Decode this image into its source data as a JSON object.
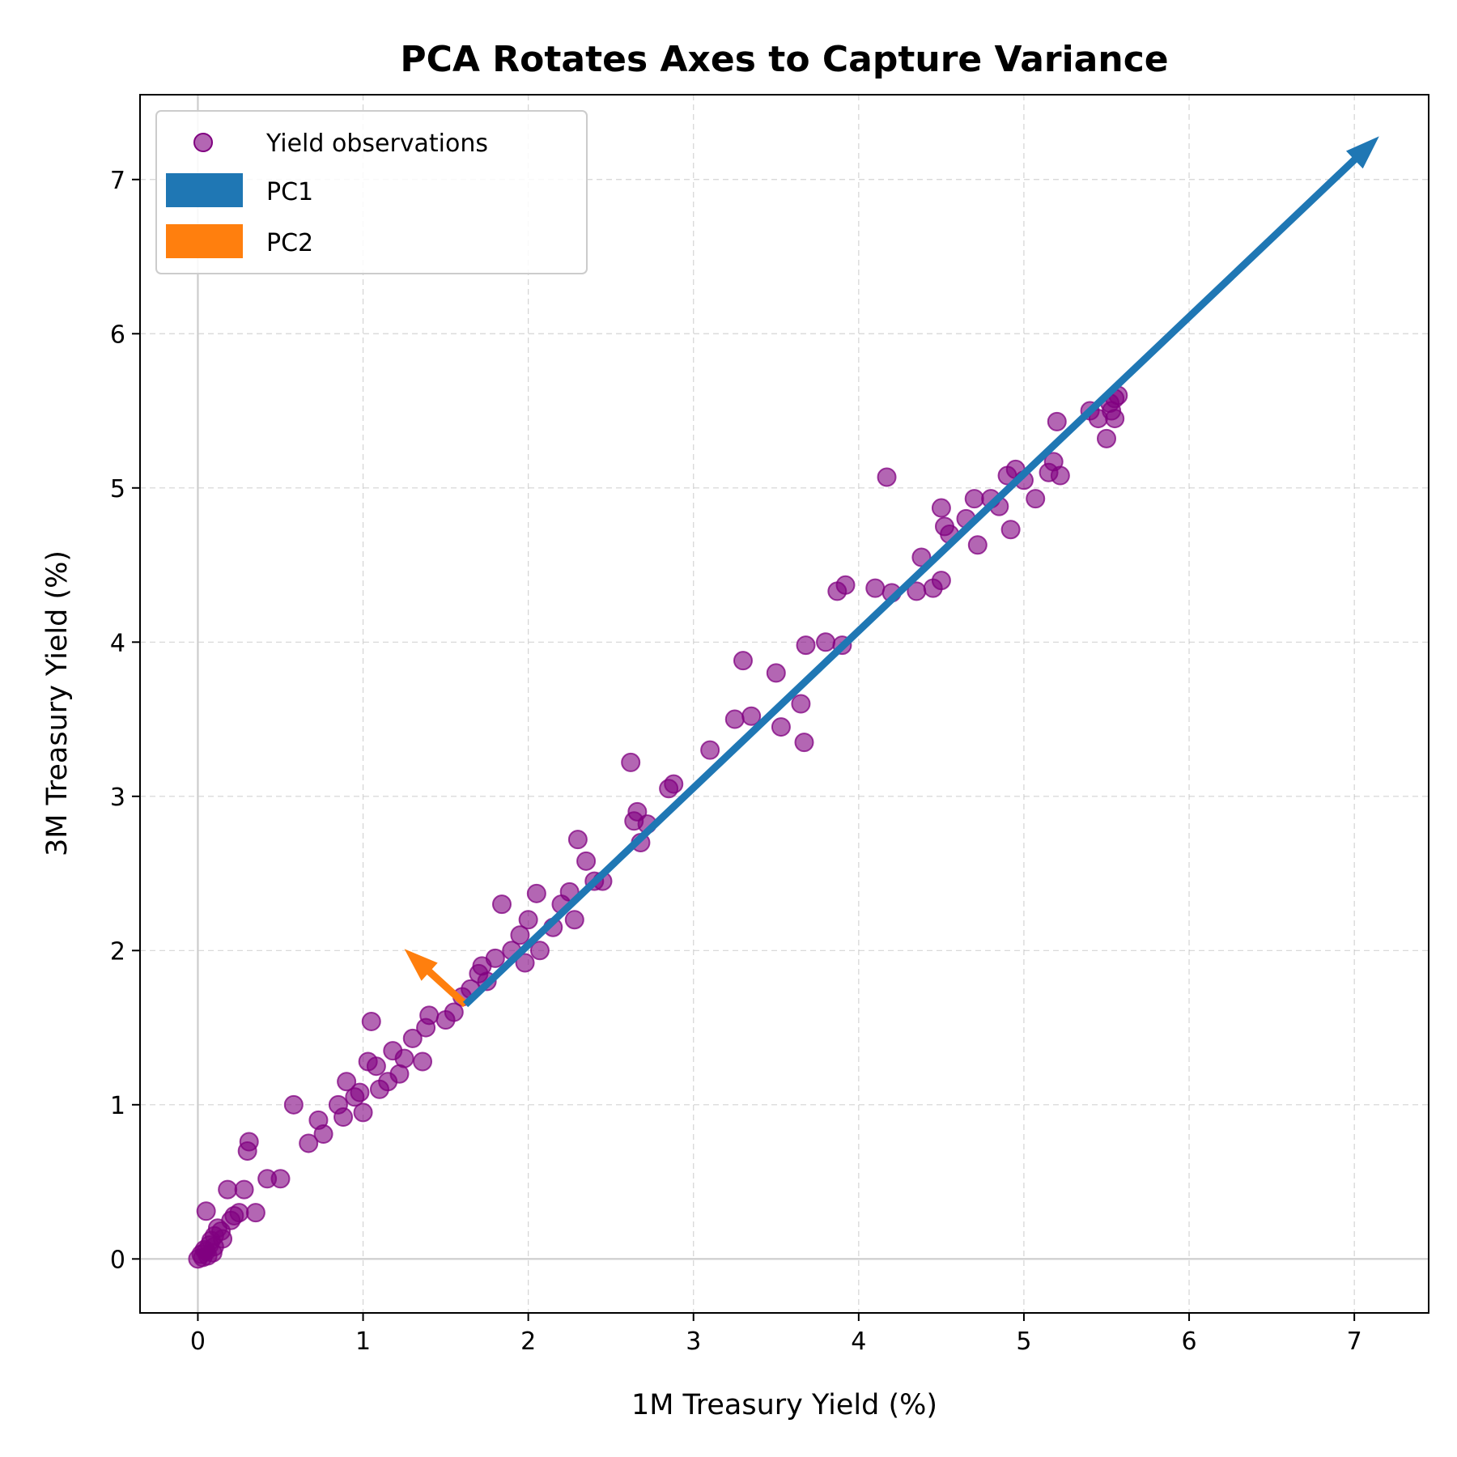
{
  "chart_data": {
    "type": "scatter",
    "title": "PCA Rotates Axes to Capture Variance",
    "xlabel": "1M Treasury Yield (%)",
    "ylabel": "3M Treasury Yield (%)",
    "xlim": [
      -0.35,
      7.45
    ],
    "ylim": [
      -0.35,
      7.55
    ],
    "xticks": [
      "0",
      "1",
      "2",
      "3",
      "4",
      "5",
      "6",
      "7"
    ],
    "yticks": [
      "0",
      "1",
      "2",
      "3",
      "4",
      "5",
      "6",
      "7"
    ],
    "grid": true,
    "legend_position": "top-left",
    "colors": {
      "points": "#800080",
      "pc1": "#1f77b4",
      "pc2": "#ff7f0e",
      "zero_lines": "#cccccc"
    },
    "series": [
      {
        "name": "Yield observations",
        "points": [
          [
            0.0,
            0.0
          ],
          [
            0.02,
            0.03
          ],
          [
            0.04,
            0.06
          ],
          [
            0.05,
            0.05
          ],
          [
            0.07,
            0.09
          ],
          [
            0.08,
            0.12
          ],
          [
            0.1,
            0.08
          ],
          [
            0.1,
            0.15
          ],
          [
            0.12,
            0.2
          ],
          [
            0.14,
            0.18
          ],
          [
            0.15,
            0.13
          ],
          [
            0.03,
            0.01
          ],
          [
            0.06,
            0.02
          ],
          [
            0.09,
            0.04
          ],
          [
            0.05,
            0.31
          ],
          [
            0.18,
            0.45
          ],
          [
            0.22,
            0.28
          ],
          [
            0.25,
            0.3
          ],
          [
            0.2,
            0.25
          ],
          [
            0.28,
            0.45
          ],
          [
            0.3,
            0.7
          ],
          [
            0.31,
            0.76
          ],
          [
            0.35,
            0.3
          ],
          [
            0.42,
            0.52
          ],
          [
            0.5,
            0.52
          ],
          [
            0.58,
            1.0
          ],
          [
            0.67,
            0.75
          ],
          [
            0.73,
            0.9
          ],
          [
            0.76,
            0.81
          ],
          [
            0.85,
            1.0
          ],
          [
            0.88,
            0.92
          ],
          [
            0.9,
            1.15
          ],
          [
            0.95,
            1.05
          ],
          [
            0.98,
            1.08
          ],
          [
            1.0,
            0.95
          ],
          [
            1.03,
            1.28
          ],
          [
            1.05,
            1.54
          ],
          [
            1.08,
            1.25
          ],
          [
            1.1,
            1.1
          ],
          [
            1.15,
            1.15
          ],
          [
            1.18,
            1.35
          ],
          [
            1.22,
            1.2
          ],
          [
            1.25,
            1.3
          ],
          [
            1.3,
            1.43
          ],
          [
            1.36,
            1.28
          ],
          [
            1.38,
            1.5
          ],
          [
            1.4,
            1.58
          ],
          [
            1.5,
            1.55
          ],
          [
            1.55,
            1.6
          ],
          [
            1.6,
            1.7
          ],
          [
            1.65,
            1.75
          ],
          [
            1.7,
            1.85
          ],
          [
            1.72,
            1.9
          ],
          [
            1.75,
            1.8
          ],
          [
            1.8,
            1.95
          ],
          [
            1.84,
            2.3
          ],
          [
            1.9,
            2.0
          ],
          [
            1.95,
            2.1
          ],
          [
            1.98,
            1.92
          ],
          [
            2.0,
            2.2
          ],
          [
            2.05,
            2.37
          ],
          [
            2.07,
            2.0
          ],
          [
            2.15,
            2.15
          ],
          [
            2.2,
            2.3
          ],
          [
            2.25,
            2.38
          ],
          [
            2.28,
            2.2
          ],
          [
            2.3,
            2.72
          ],
          [
            2.35,
            2.58
          ],
          [
            2.4,
            2.45
          ],
          [
            2.45,
            2.45
          ],
          [
            2.62,
            3.22
          ],
          [
            2.64,
            2.84
          ],
          [
            2.66,
            2.9
          ],
          [
            2.68,
            2.7
          ],
          [
            2.72,
            2.82
          ],
          [
            2.85,
            3.05
          ],
          [
            2.88,
            3.08
          ],
          [
            3.1,
            3.3
          ],
          [
            3.25,
            3.5
          ],
          [
            3.3,
            3.88
          ],
          [
            3.35,
            3.52
          ],
          [
            3.5,
            3.8
          ],
          [
            3.53,
            3.45
          ],
          [
            3.65,
            3.6
          ],
          [
            3.67,
            3.35
          ],
          [
            3.68,
            3.98
          ],
          [
            3.8,
            4.0
          ],
          [
            3.87,
            4.33
          ],
          [
            3.92,
            4.37
          ],
          [
            3.9,
            3.98
          ],
          [
            4.1,
            4.35
          ],
          [
            4.17,
            5.07
          ],
          [
            4.2,
            4.32
          ],
          [
            4.35,
            4.33
          ],
          [
            4.38,
            4.55
          ],
          [
            4.45,
            4.35
          ],
          [
            4.5,
            4.87
          ],
          [
            4.5,
            4.4
          ],
          [
            4.52,
            4.75
          ],
          [
            4.55,
            4.7
          ],
          [
            4.65,
            4.8
          ],
          [
            4.7,
            4.93
          ],
          [
            4.72,
            4.63
          ],
          [
            4.8,
            4.93
          ],
          [
            4.85,
            4.88
          ],
          [
            4.9,
            5.08
          ],
          [
            4.92,
            4.73
          ],
          [
            4.95,
            5.12
          ],
          [
            5.0,
            5.05
          ],
          [
            5.07,
            4.93
          ],
          [
            5.15,
            5.1
          ],
          [
            5.18,
            5.17
          ],
          [
            5.2,
            5.43
          ],
          [
            5.22,
            5.08
          ],
          [
            5.4,
            5.5
          ],
          [
            5.45,
            5.45
          ],
          [
            5.5,
            5.32
          ],
          [
            5.52,
            5.55
          ],
          [
            5.55,
            5.58
          ],
          [
            5.55,
            5.45
          ],
          [
            5.53,
            5.5
          ],
          [
            5.57,
            5.6
          ]
        ]
      },
      {
        "name": "PC1",
        "arrow": {
          "from": [
            1.62,
            1.65
          ],
          "to": [
            7.15,
            7.28
          ]
        }
      },
      {
        "name": "PC2",
        "arrow": {
          "from": [
            1.62,
            1.65
          ],
          "to": [
            1.25,
            2.01
          ]
        }
      }
    ]
  }
}
